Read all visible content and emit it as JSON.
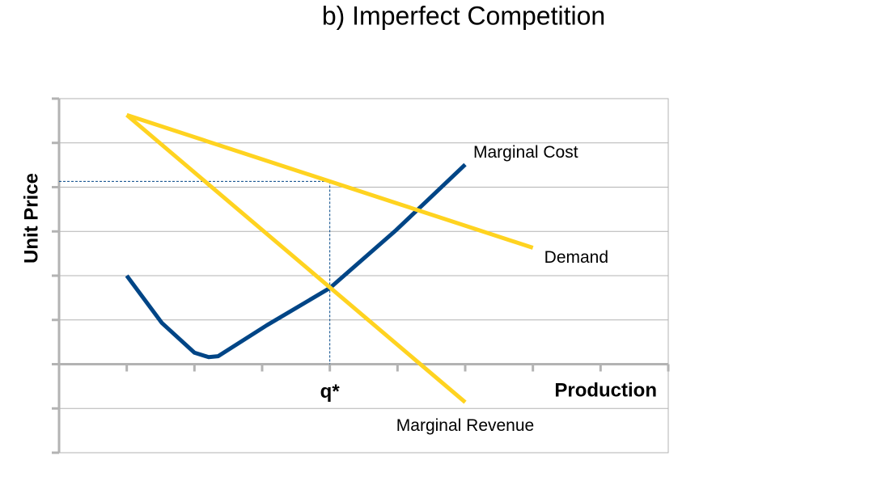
{
  "chart_data": {
    "type": "line",
    "title": "b) Imperfect Competition",
    "x_label": "Production",
    "y_label": "Unit Price",
    "xlim": [
      0,
      9
    ],
    "xticks": [
      0,
      1,
      2,
      3,
      4,
      5,
      6,
      7,
      8,
      9
    ],
    "ylim": [
      -2,
      6
    ],
    "yticks": [
      -2,
      -1,
      0,
      1,
      2,
      3,
      4,
      5,
      6
    ],
    "grid": true,
    "series": [
      {
        "name": "Marginal Cost",
        "color": "#004586",
        "x": [
          1.0,
          1.52,
          2.0,
          2.21,
          2.35,
          3.07,
          4.0,
          4.98,
          6.0
        ],
        "values": [
          2.0,
          0.93,
          0.26,
          0.16,
          0.18,
          0.88,
          1.72,
          3.03,
          4.51
        ]
      },
      {
        "name": "Demand",
        "color": "#ffd320",
        "x": [
          1.0,
          7.0
        ],
        "values": [
          5.63,
          2.63
        ]
      },
      {
        "name": "Marginal Revenue",
        "color": "#ffd320",
        "x": [
          1.0,
          6.0
        ],
        "values": [
          5.63,
          -0.86
        ]
      }
    ],
    "markers": [
      {
        "label": "q*",
        "x": 4.0,
        "y": 4.13
      }
    ]
  }
}
